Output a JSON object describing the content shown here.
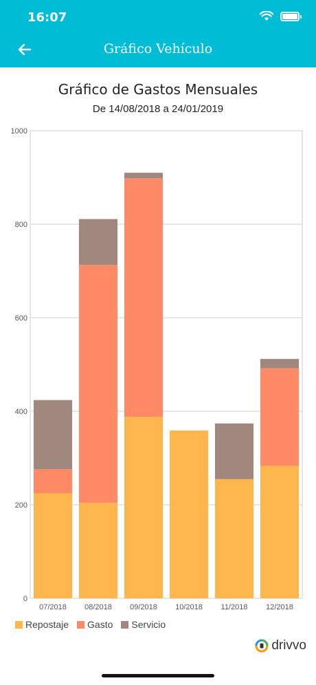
{
  "status_bar": {
    "time": "16:07"
  },
  "header": {
    "title": "Gráfico Vehículo"
  },
  "brand": {
    "name": "drivvo"
  },
  "colors": {
    "Repostaje": "#ffb74d",
    "Gasto": "#ff8a65",
    "Servicio": "#a1887f",
    "header": "#00bcd4"
  },
  "chart_data": {
    "type": "bar",
    "stacked": true,
    "title": "Gráfico de Gastos Mensuales",
    "subtitle": "De 14/08/2018 a 24/01/2019",
    "categories": [
      "07/2018",
      "08/2018",
      "09/2018",
      "10/2018",
      "11/2018",
      "12/2018"
    ],
    "series": [
      {
        "name": "Repostaje",
        "values": [
          225,
          204,
          388,
          359,
          255,
          283
        ]
      },
      {
        "name": "Gasto",
        "values": [
          51,
          509,
          510,
          0,
          0,
          209
        ]
      },
      {
        "name": "Servicio",
        "values": [
          148,
          98,
          12,
          0,
          119,
          20
        ]
      }
    ],
    "ylim": [
      0,
      1000
    ],
    "yticks": [
      0,
      200,
      400,
      600,
      800,
      1000
    ],
    "grid": true,
    "legend": "bottom-left"
  }
}
